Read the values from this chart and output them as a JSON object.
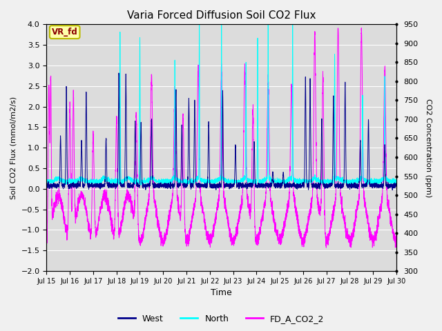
{
  "title": "Varia Forced Diffusion Soil CO2 Flux",
  "xlabel": "Time",
  "ylabel_left": "Soil CO2 Flux (mmol/m2/s)",
  "ylabel_right": "CO2 Concentration (ppm)",
  "ylim_left": [
    -2.0,
    4.0
  ],
  "ylim_right": [
    300,
    950
  ],
  "xtick_labels": [
    "Jul 15",
    "Jul 16",
    "Jul 17",
    "Jul 18",
    "Jul 19",
    "Jul 20",
    "Jul 21",
    "Jul 22",
    "Jul 23",
    "Jul 24",
    "Jul 25",
    "Jul 26",
    "Jul 27",
    "Jul 28",
    "Jul 29",
    "Jul 30"
  ],
  "bg_color": "#dcdcdc",
  "fig_bg": "#f0f0f0",
  "west_color": "#00008B",
  "north_color": "#00FFFF",
  "co2_color": "#FF00FF",
  "legend_entries": [
    "West",
    "North",
    "FD_A_CO2_2"
  ],
  "annotation_text": "VR_fd",
  "annotation_bg": "#FFFFAA",
  "annotation_border": "#BBBB00",
  "annotation_text_color": "#8B0000",
  "grid_color": "#ffffff",
  "n_points": 4320,
  "right_yticks": [
    300,
    350,
    400,
    450,
    500,
    550,
    600,
    650,
    700,
    750,
    800,
    850,
    900,
    950
  ],
  "left_yticks": [
    -2.0,
    -1.5,
    -1.0,
    -0.5,
    0.0,
    0.5,
    1.0,
    1.5,
    2.0,
    2.5,
    3.0,
    3.5,
    4.0
  ]
}
